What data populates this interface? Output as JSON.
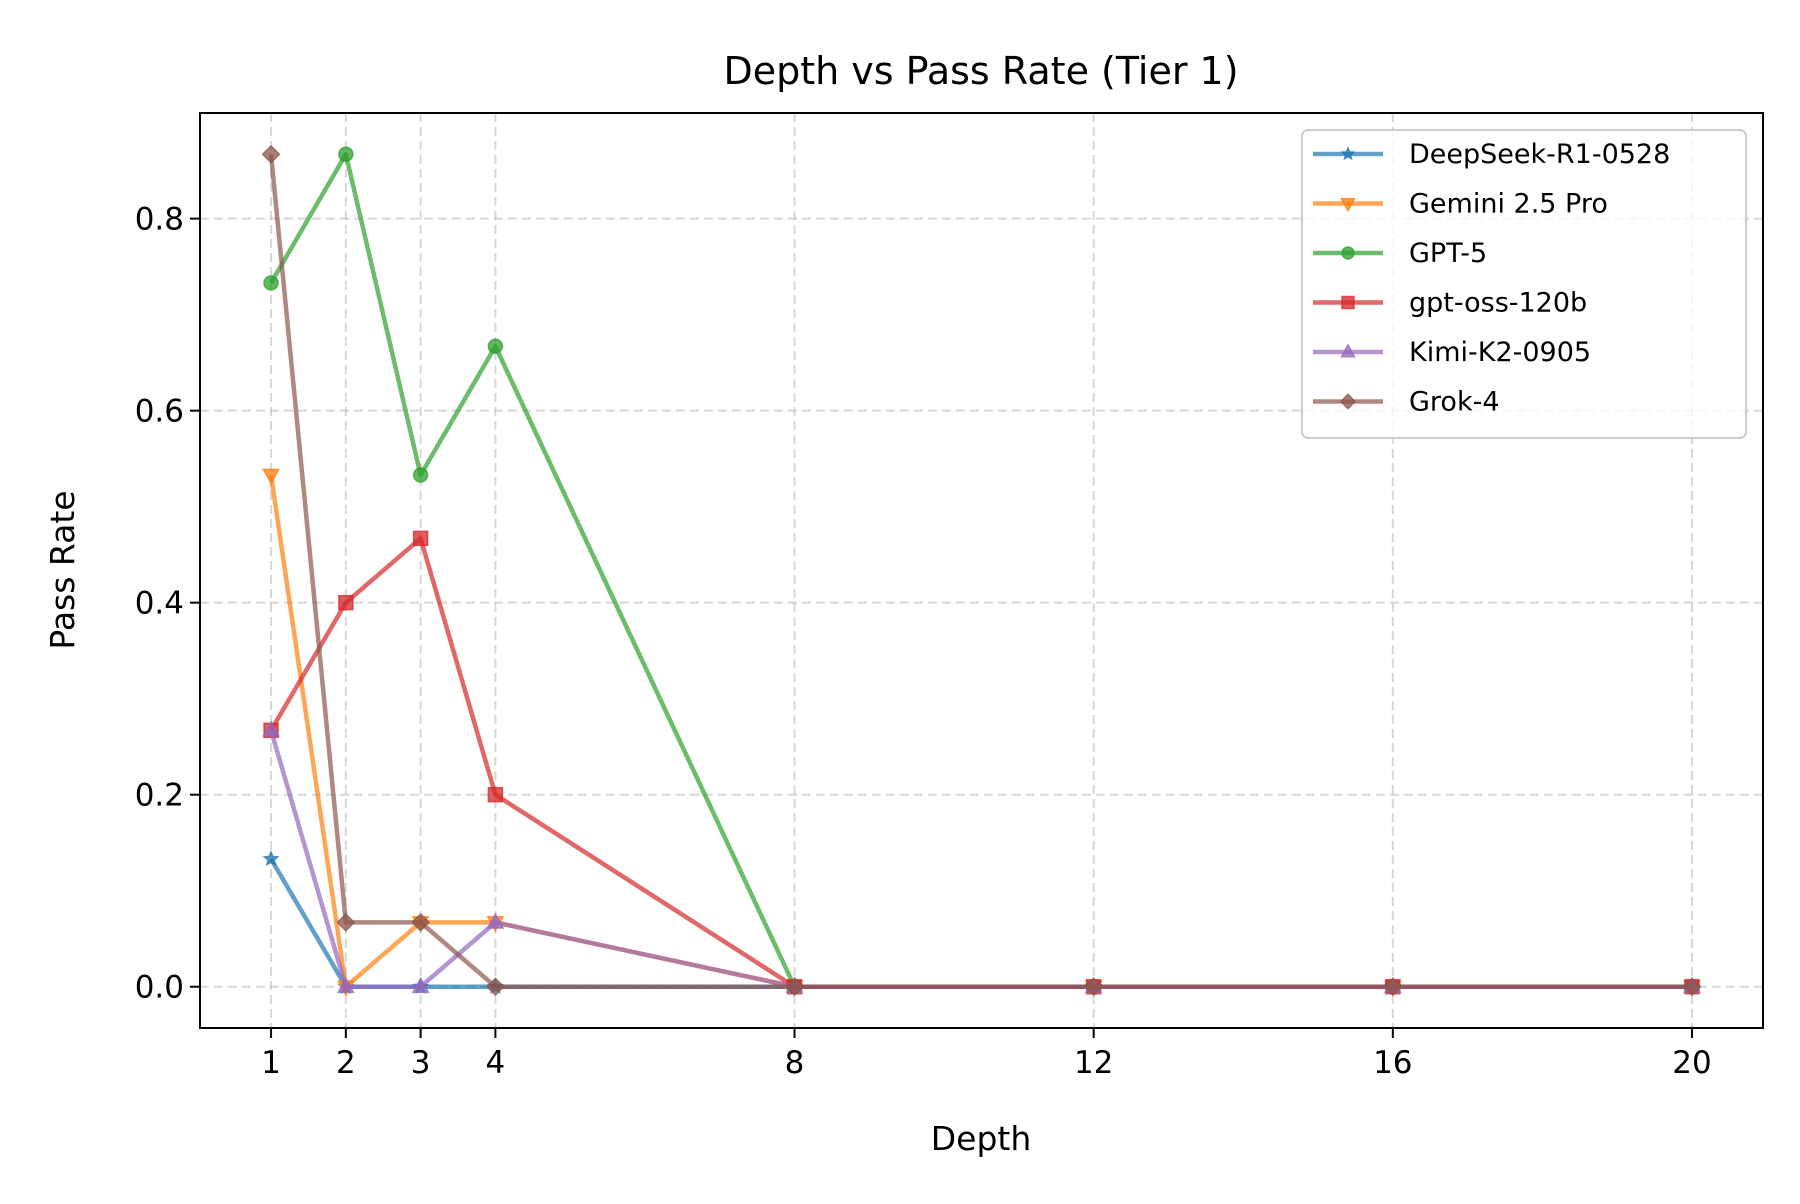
{
  "chart_data": {
    "type": "line",
    "title": "Depth vs Pass Rate (Tier 1)",
    "xlabel": "Depth",
    "ylabel": "Pass Rate",
    "x": [
      1,
      2,
      3,
      4,
      8,
      12,
      16,
      20
    ],
    "xticks": [
      "1",
      "2",
      "3",
      "4",
      "8",
      "12",
      "16",
      "20"
    ],
    "yticks": [
      0.0,
      0.2,
      0.4,
      0.6,
      0.8
    ],
    "ytick_labels": [
      "0.0",
      "0.2",
      "0.4",
      "0.6",
      "0.8"
    ],
    "xlim": [
      0.05,
      20.95
    ],
    "ylim": [
      -0.043,
      0.91
    ],
    "grid": true,
    "legend_position": "top-right",
    "series": [
      {
        "name": "DeepSeek-R1-0528",
        "color": "#1f77b4",
        "marker": "star",
        "values": [
          0.133,
          0,
          0,
          0,
          0,
          0,
          0,
          0
        ]
      },
      {
        "name": "Gemini 2.5 Pro",
        "color": "#ff7f0e",
        "marker": "triangle-down",
        "values": [
          0.533,
          0,
          0.067,
          0.067,
          0,
          0,
          0,
          0
        ]
      },
      {
        "name": "GPT-5",
        "color": "#2ca02c",
        "marker": "circle",
        "values": [
          0.733,
          0.867,
          0.533,
          0.667,
          0,
          0,
          0,
          0
        ]
      },
      {
        "name": "gpt-oss-120b",
        "color": "#d62728",
        "marker": "square",
        "values": [
          0.267,
          0.4,
          0.467,
          0.2,
          0,
          0,
          0,
          0
        ]
      },
      {
        "name": "Kimi-K2-0905",
        "color": "#9467bd",
        "marker": "triangle-up",
        "values": [
          0.267,
          0,
          0,
          0.067,
          0,
          0,
          0,
          0
        ]
      },
      {
        "name": "Grok-4",
        "color": "#8c564b",
        "marker": "diamond",
        "values": [
          0.867,
          0.067,
          0.067,
          0,
          0,
          0,
          0,
          0
        ]
      }
    ]
  }
}
